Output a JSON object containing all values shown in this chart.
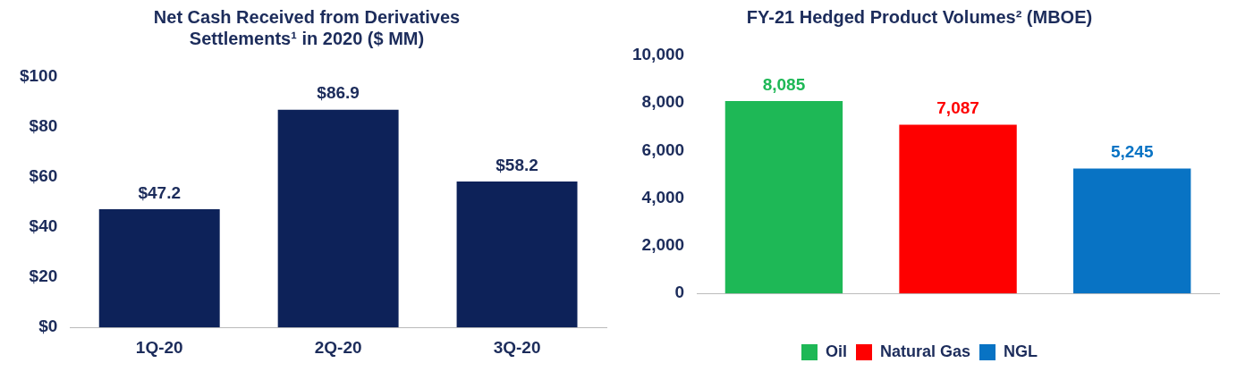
{
  "chart_data": [
    {
      "type": "bar",
      "title": "Net Cash Received from Derivatives\nSettlements¹ in 2020 ($ MM)",
      "categories": [
        "1Q-20",
        "2Q-20",
        "3Q-20"
      ],
      "values": [
        47.2,
        86.9,
        58.2
      ],
      "color": "#0d2259",
      "value_labels": [
        "$47.2",
        "$86.9",
        "$58.2"
      ],
      "ylim": [
        0,
        100
      ],
      "yticks": [
        {
          "value": 0,
          "label": "$0"
        },
        {
          "value": 20,
          "label": "$20"
        },
        {
          "value": 40,
          "label": "$40"
        },
        {
          "value": 60,
          "label": "$60"
        },
        {
          "value": 80,
          "label": "$80"
        },
        {
          "value": 100,
          "label": "$100"
        }
      ],
      "grid": false,
      "legend": false
    },
    {
      "type": "bar",
      "title": "FY-21 Hedged Product Volumes² (MBOE)",
      "categories": [
        null,
        null,
        null
      ],
      "series": [
        {
          "name": "Oil",
          "color": "#1eb856",
          "values": [
            8085,
            null,
            null
          ],
          "value_labels": [
            "8,085",
            null,
            null
          ]
        },
        {
          "name": "Natural Gas",
          "color": "#fe0000",
          "values": [
            null,
            7087,
            null
          ],
          "value_labels": [
            null,
            "7,087",
            null
          ]
        },
        {
          "name": "NGL",
          "color": "#0873c4",
          "values": [
            null,
            null,
            5245
          ],
          "value_labels": [
            null,
            null,
            "5,245"
          ]
        }
      ],
      "ylim": [
        0,
        10000
      ],
      "yticks": [
        {
          "value": 0,
          "label": "0"
        },
        {
          "value": 2000,
          "label": "2,000"
        },
        {
          "value": 4000,
          "label": "4,000"
        },
        {
          "value": 6000,
          "label": "6,000"
        },
        {
          "value": 8000,
          "label": "8,000"
        },
        {
          "value": 10000,
          "label": "10,000"
        }
      ],
      "grid": false,
      "legend": "bottom"
    }
  ]
}
